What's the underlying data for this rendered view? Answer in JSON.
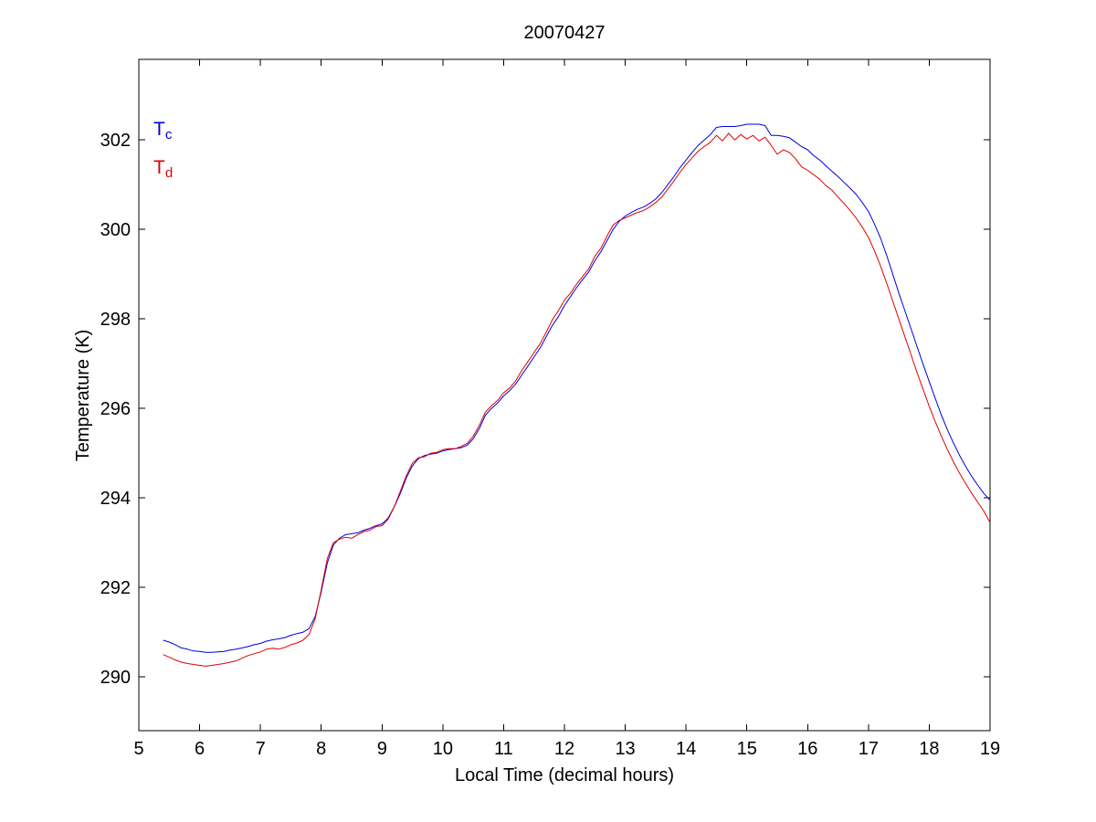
{
  "figure": {
    "background": "#ffffff",
    "frame_color": "#000000"
  },
  "chart_data": {
    "type": "line",
    "title": "20070427",
    "xlabel": "Local Time (decimal hours)",
    "ylabel": "Temperature (K)",
    "xlim": [
      5,
      19
    ],
    "ylim": [
      288.8,
      303.8
    ],
    "xticks": [
      5,
      6,
      7,
      8,
      9,
      10,
      11,
      12,
      13,
      14,
      15,
      16,
      17,
      18,
      19
    ],
    "yticks": [
      290,
      292,
      294,
      296,
      298,
      300,
      302
    ],
    "grid": false,
    "legend_position": "top-left-inside",
    "x": [
      5.4,
      5.5,
      5.6,
      5.7,
      5.8,
      5.9,
      6.0,
      6.1,
      6.2,
      6.3,
      6.4,
      6.5,
      6.6,
      6.7,
      6.8,
      6.9,
      7.0,
      7.1,
      7.2,
      7.3,
      7.4,
      7.5,
      7.6,
      7.7,
      7.8,
      7.9,
      8.0,
      8.1,
      8.2,
      8.3,
      8.4,
      8.5,
      8.6,
      8.7,
      8.8,
      8.9,
      9.0,
      9.1,
      9.2,
      9.3,
      9.4,
      9.5,
      9.6,
      9.7,
      9.8,
      9.9,
      10.0,
      10.1,
      10.2,
      10.3,
      10.4,
      10.5,
      10.6,
      10.7,
      10.8,
      10.9,
      11.0,
      11.1,
      11.2,
      11.3,
      11.4,
      11.5,
      11.6,
      11.7,
      11.8,
      11.9,
      12.0,
      12.1,
      12.2,
      12.3,
      12.4,
      12.5,
      12.6,
      12.7,
      12.8,
      12.9,
      13.0,
      13.1,
      13.2,
      13.3,
      13.4,
      13.5,
      13.6,
      13.7,
      13.8,
      13.9,
      14.0,
      14.1,
      14.2,
      14.3,
      14.4,
      14.5,
      14.6,
      14.7,
      14.8,
      14.9,
      15.0,
      15.1,
      15.2,
      15.3,
      15.4,
      15.5,
      15.6,
      15.7,
      15.8,
      15.9,
      16.0,
      16.1,
      16.2,
      16.3,
      16.4,
      16.5,
      16.6,
      16.7,
      16.8,
      16.9,
      17.0,
      17.1,
      17.2,
      17.3,
      17.4,
      17.5,
      17.6,
      17.7,
      17.8,
      17.9,
      18.0,
      18.1,
      18.2,
      18.3,
      18.4,
      18.5,
      18.6,
      18.7,
      18.8,
      18.9,
      19.0
    ],
    "series": [
      {
        "name": "Tc",
        "label_main": "T",
        "label_sub": "c",
        "color": "#0000dd",
        "values": [
          290.82,
          290.78,
          290.72,
          290.65,
          290.62,
          290.58,
          290.57,
          290.55,
          290.55,
          290.56,
          290.57,
          290.6,
          290.62,
          290.65,
          290.68,
          290.72,
          290.75,
          290.8,
          290.83,
          290.85,
          290.88,
          290.93,
          290.97,
          291.0,
          291.08,
          291.35,
          291.9,
          292.55,
          292.95,
          293.1,
          293.18,
          293.2,
          293.22,
          293.28,
          293.32,
          293.38,
          293.42,
          293.55,
          293.8,
          294.1,
          294.45,
          294.72,
          294.88,
          294.95,
          294.98,
          295.0,
          295.05,
          295.08,
          295.1,
          295.12,
          295.18,
          295.32,
          295.55,
          295.85,
          296.0,
          296.12,
          296.28,
          296.4,
          296.55,
          296.75,
          296.95,
          297.15,
          297.35,
          297.6,
          297.85,
          298.05,
          298.3,
          298.5,
          298.7,
          298.88,
          299.05,
          299.3,
          299.5,
          299.75,
          300.0,
          300.18,
          300.3,
          300.38,
          300.45,
          300.5,
          300.58,
          300.68,
          300.82,
          301.0,
          301.18,
          301.38,
          301.55,
          301.72,
          301.88,
          302.0,
          302.12,
          302.28,
          302.3,
          302.3,
          302.3,
          302.32,
          302.35,
          302.35,
          302.35,
          302.32,
          302.1,
          302.1,
          302.08,
          302.05,
          301.95,
          301.85,
          301.78,
          301.65,
          301.55,
          301.42,
          301.3,
          301.18,
          301.05,
          300.92,
          300.78,
          300.6,
          300.4,
          300.12,
          299.8,
          299.42,
          299.0,
          298.58,
          298.18,
          297.78,
          297.38,
          296.98,
          296.6,
          296.22,
          295.85,
          295.52,
          295.22,
          294.95,
          294.7,
          294.48,
          294.28,
          294.1,
          293.95
        ]
      },
      {
        "name": "Td",
        "label_main": "T",
        "label_sub": "d",
        "color": "#dd0000",
        "values": [
          290.5,
          290.44,
          290.38,
          290.33,
          290.3,
          290.28,
          290.26,
          290.24,
          290.26,
          290.28,
          290.3,
          290.33,
          290.36,
          290.42,
          290.48,
          290.52,
          290.56,
          290.62,
          290.64,
          290.62,
          290.66,
          290.72,
          290.76,
          290.82,
          290.95,
          291.3,
          291.95,
          292.65,
          293.0,
          293.08,
          293.12,
          293.1,
          293.18,
          293.25,
          293.28,
          293.36,
          293.38,
          293.52,
          293.8,
          294.15,
          294.5,
          294.78,
          294.9,
          294.92,
          295.0,
          295.02,
          295.08,
          295.1,
          295.1,
          295.15,
          295.22,
          295.38,
          295.62,
          295.92,
          296.06,
          296.18,
          296.35,
          296.46,
          296.62,
          296.85,
          297.05,
          297.25,
          297.45,
          297.7,
          297.98,
          298.18,
          298.42,
          298.58,
          298.78,
          298.95,
          299.12,
          299.4,
          299.58,
          299.85,
          300.1,
          300.2,
          300.26,
          300.32,
          300.38,
          300.42,
          300.5,
          300.6,
          300.72,
          300.9,
          301.08,
          301.28,
          301.45,
          301.6,
          301.75,
          301.85,
          301.95,
          302.1,
          301.98,
          302.15,
          302.0,
          302.12,
          302.02,
          302.1,
          301.98,
          302.06,
          301.88,
          301.68,
          301.78,
          301.72,
          301.58,
          301.4,
          301.32,
          301.22,
          301.12,
          300.98,
          300.88,
          300.72,
          300.58,
          300.42,
          300.25,
          300.05,
          299.82,
          299.52,
          299.18,
          298.8,
          298.4,
          298.0,
          297.6,
          297.2,
          296.8,
          296.42,
          296.05,
          295.7,
          295.38,
          295.08,
          294.8,
          294.55,
          294.32,
          294.1,
          293.9,
          293.7,
          293.45
        ]
      }
    ]
  }
}
